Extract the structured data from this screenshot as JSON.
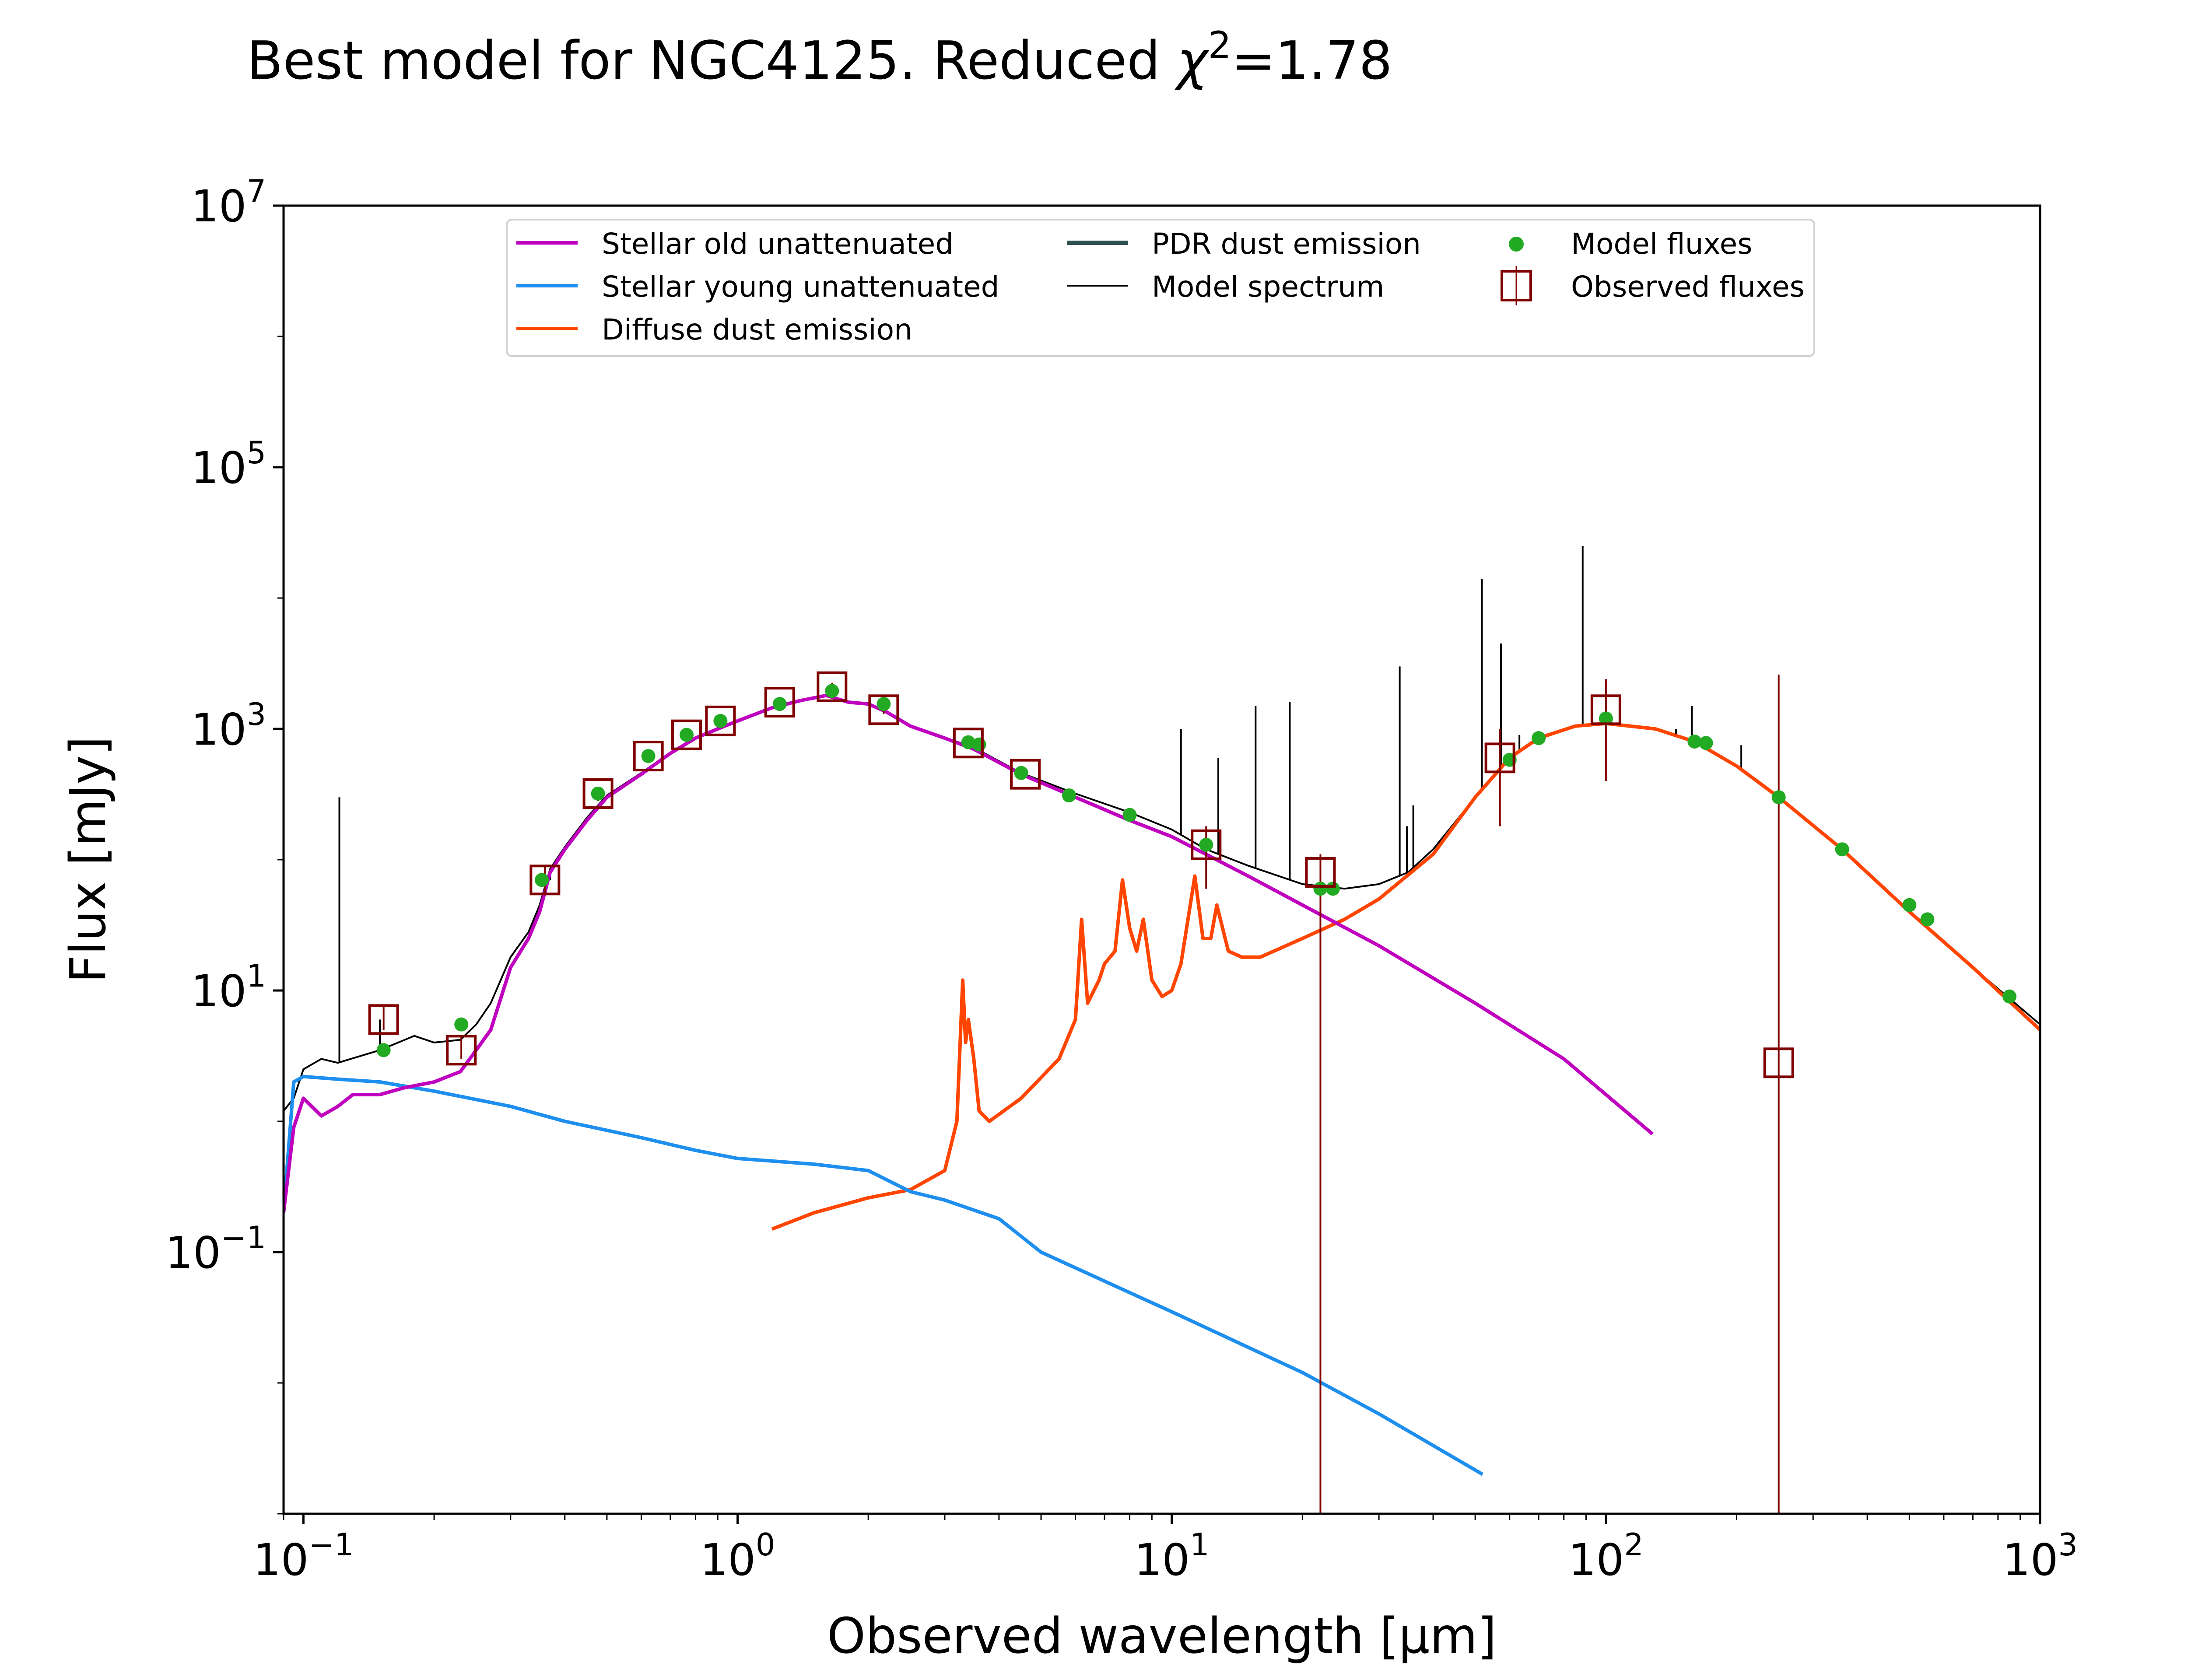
{
  "chart_data": {
    "type": "line",
    "title_prefix": "Best model for NGC4125. Reduced ",
    "title_chi": "χ",
    "title_sup": "2",
    "title_suffix": "=1.78",
    "xlabel": "Observed wavelength [μm]",
    "ylabel": "Flux [mJy]",
    "xscale": "log",
    "yscale": "log",
    "xlim": [
      0.09,
      1000
    ],
    "ylim": [
      0.001,
      10000000
    ],
    "grid": false,
    "legend_position": "top-center",
    "x_ticks": [
      {
        "value": 0.1,
        "base": "10",
        "exp": "−1"
      },
      {
        "value": 1,
        "base": "10",
        "exp": "0"
      },
      {
        "value": 10,
        "base": "10",
        "exp": "1"
      },
      {
        "value": 100,
        "base": "10",
        "exp": "2"
      },
      {
        "value": 1000,
        "base": "10",
        "exp": "3"
      }
    ],
    "y_ticks": [
      {
        "value": 0.1,
        "base": "10",
        "exp": "−1"
      },
      {
        "value": 10,
        "base": "10",
        "exp": "1"
      },
      {
        "value": 1000,
        "base": "10",
        "exp": "3"
      },
      {
        "value": 100000,
        "base": "10",
        "exp": "5"
      },
      {
        "value": 10000000,
        "base": "10",
        "exp": "7"
      }
    ],
    "series": [
      {
        "name": "Stellar old unattenuated",
        "color": "#bf00bf",
        "width": 2,
        "points": [
          [
            0.09,
            0.2
          ],
          [
            0.095,
            0.9
          ],
          [
            0.1,
            1.5
          ],
          [
            0.11,
            1.1
          ],
          [
            0.12,
            1.3
          ],
          [
            0.13,
            1.6
          ],
          [
            0.15,
            1.6
          ],
          [
            0.17,
            1.8
          ],
          [
            0.2,
            2.0
          ],
          [
            0.23,
            2.4
          ],
          [
            0.25,
            3.5
          ],
          [
            0.27,
            5
          ],
          [
            0.3,
            15
          ],
          [
            0.33,
            25
          ],
          [
            0.35,
            40
          ],
          [
            0.37,
            80
          ],
          [
            0.4,
            120
          ],
          [
            0.45,
            200
          ],
          [
            0.5,
            300
          ],
          [
            0.6,
            450
          ],
          [
            0.7,
            650
          ],
          [
            0.8,
            850
          ],
          [
            0.9,
            1000
          ],
          [
            1.0,
            1150
          ],
          [
            1.2,
            1450
          ],
          [
            1.4,
            1650
          ],
          [
            1.6,
            1800
          ],
          [
            1.8,
            1600
          ],
          [
            2.0,
            1550
          ],
          [
            2.2,
            1350
          ],
          [
            2.5,
            1050
          ],
          [
            3.0,
            850
          ],
          [
            3.5,
            700
          ],
          [
            4.5,
            450
          ],
          [
            6.0,
            300
          ],
          [
            8.0,
            200
          ],
          [
            10,
            150
          ],
          [
            15,
            75
          ],
          [
            20,
            45
          ],
          [
            30,
            22
          ],
          [
            50,
            8
          ],
          [
            80,
            3
          ],
          [
            128,
            0.8
          ]
        ]
      },
      {
        "name": "Stellar young unattenuated",
        "color": "#1e8fef",
        "width": 2,
        "points": [
          [
            0.09,
            0.2
          ],
          [
            0.095,
            2.0
          ],
          [
            0.1,
            2.2
          ],
          [
            0.12,
            2.1
          ],
          [
            0.15,
            2.0
          ],
          [
            0.2,
            1.7
          ],
          [
            0.3,
            1.3
          ],
          [
            0.4,
            1.0
          ],
          [
            0.6,
            0.75
          ],
          [
            0.8,
            0.6
          ],
          [
            1.0,
            0.52
          ],
          [
            1.5,
            0.47
          ],
          [
            2.0,
            0.42
          ],
          [
            2.5,
            0.29
          ],
          [
            3.0,
            0.25
          ],
          [
            4.0,
            0.18
          ],
          [
            5.0,
            0.1
          ],
          [
            7.0,
            0.06
          ],
          [
            10,
            0.035
          ],
          [
            20,
            0.012
          ],
          [
            30,
            0.0058
          ],
          [
            52,
            0.002
          ]
        ]
      },
      {
        "name": "Diffuse dust emission",
        "color": "#ff4500",
        "width": 2,
        "points": [
          [
            1.2,
            0.15
          ],
          [
            1.5,
            0.2
          ],
          [
            2.0,
            0.26
          ],
          [
            2.5,
            0.3
          ],
          [
            3.0,
            0.42
          ],
          [
            3.2,
            1.0
          ],
          [
            3.3,
            12
          ],
          [
            3.35,
            4
          ],
          [
            3.4,
            6
          ],
          [
            3.5,
            3
          ],
          [
            3.6,
            1.2
          ],
          [
            3.8,
            1.0
          ],
          [
            4.5,
            1.5
          ],
          [
            5.5,
            3
          ],
          [
            6.0,
            6
          ],
          [
            6.2,
            35
          ],
          [
            6.4,
            8
          ],
          [
            6.8,
            12
          ],
          [
            7.0,
            16
          ],
          [
            7.4,
            20
          ],
          [
            7.7,
            70
          ],
          [
            8.0,
            30
          ],
          [
            8.3,
            20
          ],
          [
            8.6,
            35
          ],
          [
            9.0,
            12
          ],
          [
            9.5,
            9
          ],
          [
            10.0,
            10
          ],
          [
            10.5,
            16
          ],
          [
            11.3,
            75
          ],
          [
            11.8,
            25
          ],
          [
            12.3,
            25
          ],
          [
            12.7,
            45
          ],
          [
            13.5,
            20
          ],
          [
            14.5,
            18
          ],
          [
            16,
            18
          ],
          [
            20,
            25
          ],
          [
            25,
            35
          ],
          [
            30,
            50
          ],
          [
            40,
            110
          ],
          [
            50,
            300
          ],
          [
            60,
            600
          ],
          [
            70,
            850
          ],
          [
            85,
            1050
          ],
          [
            100,
            1100
          ],
          [
            130,
            1000
          ],
          [
            160,
            800
          ],
          [
            200,
            520
          ],
          [
            250,
            300
          ],
          [
            350,
            120
          ],
          [
            500,
            40
          ],
          [
            700,
            15
          ],
          [
            1000,
            5
          ]
        ]
      },
      {
        "name": "PDR dust emission",
        "color": "#2f4f4f",
        "width": 2.5,
        "points": []
      },
      {
        "name": "Model spectrum",
        "color": "#000000",
        "width": 1,
        "points": [
          [
            0.09,
            1.2
          ],
          [
            0.095,
            1.5
          ],
          [
            0.1,
            2.5
          ],
          [
            0.11,
            3.0
          ],
          [
            0.12,
            2.8
          ],
          [
            0.15,
            3.5
          ],
          [
            0.18,
            4.5
          ],
          [
            0.2,
            4.0
          ],
          [
            0.23,
            4.2
          ],
          [
            0.25,
            5.5
          ],
          [
            0.27,
            8
          ],
          [
            0.3,
            18
          ],
          [
            0.33,
            28
          ],
          [
            0.35,
            45
          ],
          [
            0.37,
            85
          ],
          [
            0.4,
            125
          ],
          [
            0.45,
            210
          ],
          [
            0.5,
            310
          ],
          [
            0.6,
            460
          ],
          [
            0.7,
            660
          ],
          [
            0.8,
            860
          ],
          [
            0.9,
            1010
          ],
          [
            1.0,
            1160
          ],
          [
            1.2,
            1460
          ],
          [
            1.4,
            1660
          ],
          [
            1.6,
            1810
          ],
          [
            1.8,
            1610
          ],
          [
            2.0,
            1560
          ],
          [
            2.2,
            1360
          ],
          [
            2.5,
            1060
          ],
          [
            3.0,
            860
          ],
          [
            3.5,
            720
          ],
          [
            4.5,
            460
          ],
          [
            6.0,
            320
          ],
          [
            8.0,
            230
          ],
          [
            10,
            170
          ],
          [
            12,
            120
          ],
          [
            15,
            90
          ],
          [
            20,
            65
          ],
          [
            25,
            60
          ],
          [
            30,
            65
          ],
          [
            35,
            80
          ],
          [
            40,
            120
          ],
          [
            50,
            300
          ],
          [
            60,
            600
          ],
          [
            70,
            850
          ],
          [
            85,
            1050
          ],
          [
            100,
            1100
          ],
          [
            130,
            1000
          ],
          [
            160,
            800
          ],
          [
            200,
            520
          ],
          [
            250,
            300
          ],
          [
            350,
            120
          ],
          [
            500,
            40
          ],
          [
            700,
            15
          ],
          [
            1000,
            5.5
          ]
        ],
        "spikes": [
          [
            0.121,
            300
          ],
          [
            0.15,
            6
          ],
          [
            0.37,
            70
          ],
          [
            10.5,
            1000
          ],
          [
            12.8,
            600
          ],
          [
            15.6,
            1500
          ],
          [
            18.7,
            1600
          ],
          [
            33.5,
            3000
          ],
          [
            34.8,
            180
          ],
          [
            36.0,
            260
          ],
          [
            51.8,
            14000
          ],
          [
            57.3,
            4500
          ],
          [
            63.2,
            900
          ],
          [
            88.4,
            25000
          ],
          [
            145,
            1000
          ],
          [
            157.7,
            1500
          ],
          [
            205,
            750
          ]
        ]
      }
    ],
    "model_fluxes": {
      "name": "Model fluxes",
      "color": "#22aa22",
      "points": [
        [
          0.153,
          3.5
        ],
        [
          0.231,
          5.5
        ],
        [
          0.354,
          70
        ],
        [
          0.477,
          320
        ],
        [
          0.623,
          620
        ],
        [
          0.763,
          900
        ],
        [
          0.913,
          1150
        ],
        [
          1.25,
          1550
        ],
        [
          1.65,
          1950
        ],
        [
          2.17,
          1550
        ],
        [
          3.4,
          790
        ],
        [
          3.6,
          760
        ],
        [
          4.5,
          460
        ],
        [
          5.8,
          310
        ],
        [
          8,
          220
        ],
        [
          12,
          130
        ],
        [
          22,
          60
        ],
        [
          23.5,
          60
        ],
        [
          60,
          580
        ],
        [
          70,
          850
        ],
        [
          100,
          1200
        ],
        [
          160,
          800
        ],
        [
          170,
          780
        ],
        [
          250,
          300
        ],
        [
          350,
          120
        ],
        [
          500,
          45
        ],
        [
          550,
          35
        ],
        [
          850,
          9
        ]
      ]
    },
    "observed_fluxes": {
      "name": "Observed fluxes",
      "color": "#800000",
      "points": [
        {
          "x": 0.153,
          "y": 6,
          "lo": 5,
          "hi": 7.5
        },
        {
          "x": 0.231,
          "y": 3.5,
          "lo": 3,
          "hi": 4.5
        },
        {
          "x": 0.36,
          "y": 70,
          "lo": 55,
          "hi": 90
        },
        {
          "x": 0.477,
          "y": 320,
          "lo": 280,
          "hi": 350
        },
        {
          "x": 0.623,
          "y": 620,
          "lo": 580,
          "hi": 660
        },
        {
          "x": 0.763,
          "y": 900,
          "lo": 850,
          "hi": 950
        },
        {
          "x": 0.913,
          "y": 1150,
          "lo": 1100,
          "hi": 1200
        },
        {
          "x": 1.25,
          "y": 1600,
          "lo": 1500,
          "hi": 1700
        },
        {
          "x": 1.65,
          "y": 2100,
          "lo": 1950,
          "hi": 2250
        },
        {
          "x": 2.17,
          "y": 1400,
          "lo": 1300,
          "hi": 1500
        },
        {
          "x": 3.4,
          "y": 780,
          "lo": 720,
          "hi": 820
        },
        {
          "x": 4.6,
          "y": 450,
          "lo": 420,
          "hi": 480
        },
        {
          "x": 12,
          "y": 130,
          "lo": 60,
          "hi": 180
        },
        {
          "x": 22,
          "y": 80,
          "lo": 0.001,
          "hi": 110
        },
        {
          "x": 57,
          "y": 600,
          "lo": 180,
          "hi": 1000
        },
        {
          "x": 100,
          "y": 1400,
          "lo": 400,
          "hi": 2400
        },
        {
          "x": 250,
          "y": 2.8,
          "lo": 0.001,
          "hi": 2600
        }
      ]
    }
  }
}
